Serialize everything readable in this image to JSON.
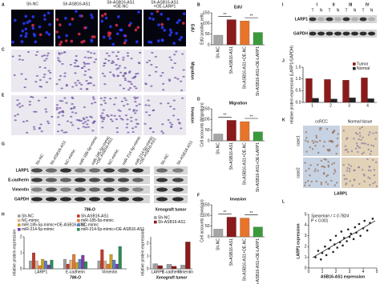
{
  "panel_labels": [
    "A",
    "B",
    "C",
    "D",
    "E",
    "F",
    "G",
    "H",
    "I",
    "J",
    "K",
    "L"
  ],
  "cell_images": {
    "headers": [
      [
        "Sh-NC"
      ],
      [
        "Sh-ASB16-AS1"
      ],
      [
        "Sh-ASB16-AS1",
        "+OE-NC"
      ],
      [
        "Sh-ASB16-AS1",
        "+OE-LARP1"
      ]
    ],
    "rows": [
      "EdU",
      "Migration",
      "Invasion"
    ]
  },
  "blot_G": {
    "lanes": [
      [
        "Sh-NC"
      ],
      [
        "Sh-ASB16-AS1"
      ],
      [
        "NC-mimic"
      ],
      [
        "miR-185-5p-mimic"
      ],
      [
        "miR-185-5p-mimic",
        "+OE-ASB16-AS1"
      ],
      [
        "NC-mimic"
      ],
      [
        "miR-214-5p-mimic"
      ],
      [
        "miR-214-5p-mimic",
        "+OE-ASB16-AS1"
      ],
      [
        "Sh-NC"
      ],
      [
        "Sh-ASB16-AS1"
      ]
    ],
    "proteins": [
      "LARP1",
      "E-cadherin",
      "Vimentin",
      "GAPDH"
    ],
    "groups": [
      "786-O",
      "Xenograft tumor"
    ]
  },
  "blot_I": {
    "stages": [
      "I",
      "II",
      "III",
      "IV"
    ],
    "lanes": [
      "T",
      "N",
      "T",
      "N",
      "T",
      "N",
      "T",
      "N"
    ],
    "proteins": [
      "LARP1",
      "GAPDH"
    ]
  },
  "ihc_K": {
    "columns": [
      "ccRCC",
      "Normal tissue"
    ],
    "rows": [
      "case1",
      "case2"
    ],
    "stain": "LARP1"
  },
  "chart_data": [
    {
      "type": "bar",
      "title": "EdU",
      "ylabel": "EdU positive cells",
      "categories": [
        "Sh-NC",
        "Sh-ASB16-AS1",
        "Sh-ASB16-AS1+OE-NC",
        "Sh-ASB16-AS1+OE-LARP1"
      ],
      "values": [
        45,
        118,
        112,
        58
      ],
      "colors": [
        "#a6a6a6",
        "#8b1a1a",
        "#e8742a",
        "#3a9a3a"
      ],
      "ylim": [
        0,
        150
      ],
      "yticks": [
        0,
        50,
        100,
        150
      ],
      "annotations": [
        "**",
        "**"
      ]
    },
    {
      "type": "bar",
      "title": "Migration",
      "ylabel": "Cell accounts (Migration)",
      "categories": [
        "Sh-NC",
        "Sh-ASB16-AS1",
        "Sh-ASB16-AS1+OE-NC",
        "Sh-ASB16-AS1+OE-LARP1"
      ],
      "values": [
        32,
        96,
        90,
        42
      ],
      "colors": [
        "#a6a6a6",
        "#8b1a1a",
        "#e8742a",
        "#3a9a3a"
      ],
      "ylim": [
        0,
        150
      ],
      "yticks": [
        0,
        50,
        100,
        150
      ],
      "annotations": [
        "**",
        "**"
      ]
    },
    {
      "type": "bar",
      "title": "Invasion",
      "ylabel": "Cell accounts (Invasion)",
      "categories": [
        "Sh-NC",
        "Sh-ASB16-AS1",
        "Sh-ASB16-AS1+OE-NC",
        "Sh-ASB16-AS1+OE-LARP1"
      ],
      "values": [
        36,
        92,
        88,
        46
      ],
      "colors": [
        "#a6a6a6",
        "#8b1a1a",
        "#e8742a",
        "#3a9a3a"
      ],
      "ylim": [
        0,
        150
      ],
      "yticks": [
        0,
        50,
        100,
        150
      ],
      "annotations": [
        "**",
        "**"
      ]
    },
    {
      "type": "bar",
      "ylabel": "relative protein expression (LARP1/GAPDH)",
      "categories": [
        "1",
        "2",
        "3",
        "4"
      ],
      "series": [
        {
          "name": "Tumor",
          "color": "#8b1a1a",
          "values": [
            1.02,
            0.98,
            0.95,
            1.05
          ]
        },
        {
          "name": "Normal",
          "color": "#222222",
          "values": [
            0.18,
            0.15,
            0.2,
            0.16
          ]
        }
      ],
      "ylim": [
        0,
        1.5
      ],
      "yticks": [
        {
          "value": 0,
          "label": "0.0"
        },
        {
          "value": 0.5,
          "label": "0.5"
        },
        {
          "value": 1,
          "label": "1.0"
        },
        {
          "value": 1.5,
          "label": "1.5"
        }
      ],
      "legend": "top-right"
    },
    {
      "type": "bar",
      "ylabel": "relative protein expression",
      "xlabel": "786-O",
      "categories": [
        "LARP1",
        "E-cadherin",
        "Vimentin"
      ],
      "series": [
        {
          "name": "Sh-NC",
          "color": "#9e9e9e",
          "values": [
            0.5,
            0.6,
            0.5
          ]
        },
        {
          "name": "Sh-ASB16-AS1",
          "color": "#c0392b",
          "values": [
            1.0,
            0.3,
            1.2
          ]
        },
        {
          "name": "NC-mimic",
          "color": "#d9b38c",
          "values": [
            0.5,
            0.55,
            0.5
          ]
        },
        {
          "name": "miR-185-5p-mimic",
          "color": "#e07b39",
          "values": [
            0.2,
            0.9,
            0.3
          ]
        },
        {
          "name": "miR-185-5p-mimic+OE-ASB16-AS1",
          "color": "#c9a227",
          "values": [
            0.6,
            0.4,
            0.9
          ]
        },
        {
          "name": "NC-mimic",
          "color": "#5b7fc7",
          "values": [
            0.5,
            0.6,
            0.55
          ]
        },
        {
          "name": "miR-214-5p-mimic",
          "color": "#7b3fa0",
          "values": [
            0.25,
            0.85,
            0.3
          ]
        },
        {
          "name": "miR-214-5p-mimic+OE-ASB16-AS1",
          "color": "#2e8b57",
          "values": [
            0.55,
            0.45,
            1.4
          ]
        }
      ],
      "ylim": [
        0,
        2
      ],
      "yticks": [
        0,
        1,
        2
      ],
      "legend": "top"
    },
    {
      "type": "bar",
      "ylabel": "relative protein expression",
      "xlabel": "Xenograft tumor",
      "categories": [
        "LARP1",
        "E-cadherin",
        "Vimentin"
      ],
      "series": [
        {
          "name": "Sh-NC",
          "color": "#9e9e9e",
          "values": [
            0.4,
            0.35,
            0.3
          ]
        },
        {
          "name": "Sh-ASB16-AS1",
          "color": "#8b1a1a",
          "values": [
            0.25,
            0.2,
            2.1
          ]
        }
      ],
      "ylim": [
        0,
        2.5
      ],
      "yticks": [
        0,
        1,
        2
      ],
      "legend": "top"
    },
    {
      "type": "scatter",
      "xlabel": "ASB16-AS1 expression",
      "ylabel": "LARP1 expression",
      "annotations": [
        "Spearman r = 0.7824",
        "P < 0.001"
      ],
      "color": "#222222",
      "x": [
        0.5,
        0.7,
        0.9,
        1.0,
        1.2,
        1.3,
        1.5,
        1.6,
        1.8,
        1.9,
        2.0,
        2.1,
        2.3,
        2.4,
        2.5,
        2.6,
        2.8,
        2.9,
        3.0,
        3.1,
        3.3,
        3.4,
        3.5,
        3.7,
        3.8,
        4.0,
        4.1,
        4.3,
        4.5,
        4.7
      ],
      "y": [
        1.0,
        1.6,
        0.8,
        1.4,
        2.0,
        1.2,
        1.8,
        2.6,
        1.5,
        2.2,
        3.0,
        1.9,
        2.4,
        3.4,
        2.1,
        2.8,
        2.5,
        3.6,
        2.9,
        3.2,
        2.7,
        3.8,
        3.3,
        4.1,
        3.0,
        3.7,
        4.4,
        3.5,
        4.2,
        4.6
      ],
      "xlim": [
        0,
        5
      ],
      "ylim": [
        0,
        5
      ],
      "xticks": [
        0,
        1,
        2,
        3,
        4,
        5
      ],
      "yticks": [
        0,
        1,
        2,
        3,
        4,
        5
      ]
    }
  ]
}
